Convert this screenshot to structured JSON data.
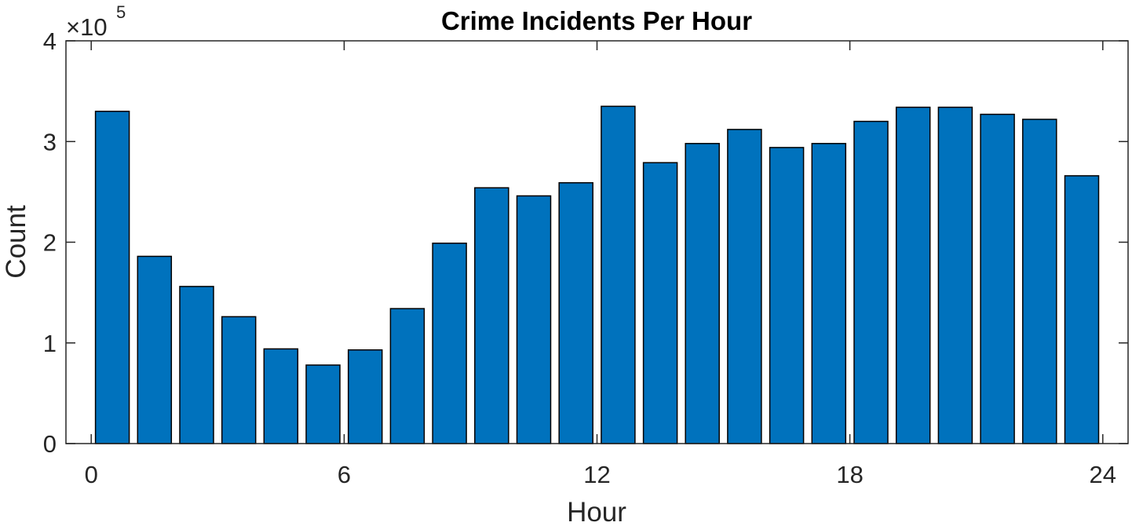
{
  "chart_data": {
    "type": "bar",
    "title": "Crime Incidents Per Hour",
    "xlabel": "Hour",
    "ylabel": "Count",
    "x": [
      0.5,
      1.5,
      2.5,
      3.5,
      4.5,
      5.5,
      6.5,
      7.5,
      8.5,
      9.5,
      10.5,
      11.5,
      12.5,
      13.5,
      14.5,
      15.5,
      16.5,
      17.5,
      18.5,
      19.5,
      20.5,
      21.5,
      22.5,
      23.5
    ],
    "values": [
      330000,
      186000,
      156000,
      126000,
      94000,
      78000,
      93000,
      134000,
      199000,
      254000,
      246000,
      259000,
      335000,
      279000,
      298000,
      312000,
      294000,
      298000,
      320000,
      334000,
      334000,
      327000,
      322000,
      266000
    ],
    "xlim": [
      -0.6,
      24.6
    ],
    "ylim": [
      0,
      400000
    ],
    "x_ticks": [
      0,
      6,
      12,
      18,
      24
    ],
    "y_ticks": [
      0,
      100000,
      200000,
      300000,
      400000
    ],
    "y_tick_labels": [
      "0",
      "1",
      "2",
      "3",
      "4"
    ],
    "y_multiplier_base": "×10",
    "y_multiplier_exponent": "5",
    "bar_color": "#0072BD",
    "bar_edge_color": "#000000",
    "grid": false,
    "legend": "none"
  }
}
